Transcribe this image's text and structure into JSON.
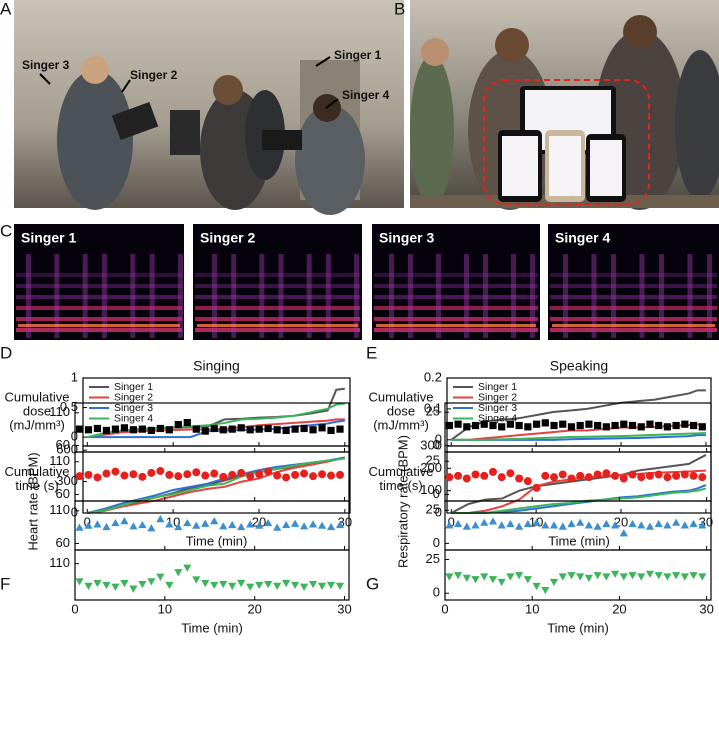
{
  "panel_labels": [
    "A",
    "B",
    "C",
    "D",
    "E",
    "F",
    "G"
  ],
  "photo_a": {
    "annotations": [
      "Singer 3",
      "Singer 2",
      "Singer 1",
      "Singer 4"
    ]
  },
  "spectrograms": {
    "labels": [
      "Singer 1",
      "Singer 2",
      "Singer 3",
      "Singer 4"
    ]
  },
  "chart_data": [
    {
      "type": "line",
      "title": "Singing",
      "xlabel": "Time (min)",
      "xlim": [
        -0.5,
        30.6
      ],
      "xticks": [
        0,
        10,
        20,
        30
      ],
      "x": [
        0,
        2,
        4,
        6,
        8,
        10,
        12,
        14,
        16,
        18,
        20,
        22,
        24,
        26,
        28,
        29,
        30
      ],
      "series": [
        {
          "name": "Singer 1",
          "color": "#555555"
        },
        {
          "name": "Singer 2",
          "color": "#e8403f"
        },
        {
          "name": "Singer 3",
          "color": "#2f6fd6"
        },
        {
          "name": "Singer 4",
          "color": "#3cb55a"
        }
      ],
      "subplots": [
        {
          "ylabel": [
            "Cumulative",
            "dose",
            "(mJ/mm³)"
          ],
          "ylim": [
            -0.15,
            1.0
          ],
          "yticks": [
            0,
            0.5,
            1
          ],
          "values": [
            [
              0,
              0.06,
              0.1,
              0.13,
              0.15,
              0.16,
              0.17,
              0.18,
              0.3,
              0.31,
              0.33,
              0.34,
              0.36,
              0.4,
              0.45,
              0.8,
              0.82
            ],
            [
              0,
              0.04,
              0.08,
              0.1,
              0.11,
              0.12,
              0.13,
              0.13,
              0.14,
              0.17,
              0.2,
              0.22,
              0.24,
              0.26,
              0.28,
              0.3,
              0.3
            ],
            [
              0,
              0,
              0,
              0,
              0,
              0,
              0,
              0.1,
              0.11,
              0.12,
              0.13,
              0.14,
              0.18,
              0.2,
              0.23,
              0.26,
              0.28
            ],
            [
              0,
              0.07,
              0.11,
              0.14,
              0.15,
              0.17,
              0.18,
              0.2,
              0.24,
              0.3,
              0.31,
              0.33,
              0.36,
              0.42,
              0.48,
              0.55,
              0.57
            ]
          ]
        },
        {
          "ylabel": [
            "Cumulative",
            "time (s)"
          ],
          "ylim": [
            0,
            640
          ],
          "yticks": [
            0,
            300,
            600
          ],
          "values": [
            [
              0,
              30,
              70,
              110,
              150,
              190,
              240,
              270,
              310,
              360,
              390,
              420,
              440,
              470,
              500,
              515,
              530
            ],
            [
              0,
              20,
              60,
              90,
              120,
              160,
              200,
              230,
              250,
              300,
              330,
              390,
              430,
              460,
              490,
              510,
              525
            ],
            [
              0,
              40,
              90,
              130,
              170,
              220,
              250,
              280,
              330,
              370,
              410,
              440,
              460,
              480,
              500,
              515,
              525
            ],
            [
              0,
              25,
              70,
              120,
              150,
              180,
              220,
              260,
              280,
              350,
              390,
              420,
              450,
              480,
              500,
              510,
              520
            ]
          ]
        }
      ]
    },
    {
      "type": "line",
      "title": "Speaking",
      "xlabel": "Time (min)",
      "xlim": [
        -0.5,
        30.6
      ],
      "xticks": [
        0,
        10,
        20,
        30
      ],
      "x": [
        0,
        2,
        4,
        6,
        8,
        10,
        12,
        14,
        16,
        18,
        20,
        22,
        24,
        26,
        28,
        29,
        30
      ],
      "series": [
        {
          "name": "Singer 1",
          "color": "#555555"
        },
        {
          "name": "Singer 2",
          "color": "#e8403f"
        },
        {
          "name": "Singer 3",
          "color": "#2f6fd6"
        },
        {
          "name": "Singer 4",
          "color": "#3cb55a"
        }
      ],
      "subplots": [
        {
          "ylabel": [
            "Cumulative",
            "dose",
            "(mJ/mm³)"
          ],
          "ylim": [
            -0.02,
            0.2
          ],
          "yticks": [
            0,
            0.1,
            0.2
          ],
          "values": [
            [
              0,
              0.04,
              0.06,
              0.065,
              0.07,
              0.08,
              0.09,
              0.095,
              0.1,
              0.11,
              0.12,
              0.125,
              0.13,
              0.14,
              0.15,
              0.16,
              0.16
            ],
            [
              0,
              0,
              0.005,
              0.01,
              0.015,
              0.02,
              0.025,
              0.03,
              0.03,
              0.035,
              0.04,
              0.04,
              0.042,
              0.045,
              0.048,
              0.05,
              0.05
            ],
            [
              0,
              0,
              0,
              0,
              0,
              0,
              0,
              0.002,
              0.003,
              0.004,
              0.005,
              0.006,
              0.008,
              0.01,
              0.012,
              0.015,
              0.015
            ],
            [
              0,
              0,
              0,
              0.002,
              0.003,
              0.005,
              0.007,
              0.009,
              0.01,
              0.011,
              0.012,
              0.014,
              0.016,
              0.018,
              0.02,
              0.021,
              0.022
            ]
          ]
        },
        {
          "ylabel": [
            "Cumulative",
            "time (s)"
          ],
          "ylim": [
            0,
            300
          ],
          "yticks": [
            0,
            100,
            200,
            300
          ],
          "values": [
            [
              0,
              40,
              60,
              65,
              100,
              120,
              130,
              140,
              150,
              160,
              170,
              190,
              200,
              210,
              220,
              240,
              260
            ],
            [
              0,
              0,
              10,
              30,
              60,
              120,
              140,
              150,
              160,
              165,
              170,
              175,
              180,
              183,
              186,
              188,
              190
            ],
            [
              0,
              0,
              0,
              5,
              10,
              20,
              30,
              40,
              50,
              60,
              70,
              75,
              85,
              95,
              100,
              110,
              125
            ],
            [
              0,
              0,
              0,
              10,
              20,
              30,
              40,
              45,
              55,
              60,
              65,
              70,
              80,
              90,
              95,
              100,
              110
            ]
          ]
        }
      ]
    },
    {
      "type": "scatter",
      "xlabel": "Time (min)",
      "ylabel": "Heart rate (BPM)",
      "xlim": [
        0,
        30.5
      ],
      "xticks": [
        0,
        10,
        20,
        30
      ],
      "x": [
        0.5,
        1.5,
        2.5,
        3.5,
        4.5,
        5.5,
        6.5,
        7.5,
        8.5,
        9.5,
        10.5,
        11.5,
        12.5,
        13.5,
        14.5,
        15.5,
        16.5,
        17.5,
        18.5,
        19.5,
        20.5,
        21.5,
        22.5,
        23.5,
        24.5,
        25.5,
        26.5,
        27.5,
        28.5,
        29.5
      ],
      "series": [
        {
          "color": "#000000",
          "marker": "square"
        },
        {
          "color": "#e8201c",
          "marker": "circle"
        },
        {
          "color": "#3b8fd0",
          "marker": "triangle-up"
        },
        {
          "color": "#3cb55a",
          "marker": "triangle-down"
        }
      ],
      "subplots": [
        {
          "ylim": [
            50,
            125
          ],
          "yticks": [
            60,
            110
          ],
          "values": [
            85,
            84,
            86,
            83,
            85,
            87,
            84,
            85,
            83,
            86,
            84,
            92,
            95,
            85,
            82,
            86,
            84,
            85,
            87,
            84,
            85,
            86,
            84,
            83,
            85,
            86,
            84,
            87,
            83,
            85
          ]
        },
        {
          "ylim": [
            50,
            125
          ],
          "yticks": [
            60,
            110
          ],
          "values": [
            88,
            90,
            86,
            92,
            95,
            89,
            91,
            87,
            93,
            96,
            90,
            88,
            91,
            94,
            89,
            92,
            87,
            90,
            93,
            88,
            91,
            95,
            89,
            86,
            90,
            92,
            88,
            91,
            89,
            90
          ]
        },
        {
          "ylim": [
            50,
            125
          ],
          "yticks": [
            60,
            110
          ],
          "values": [
            85,
            88,
            90,
            86,
            92,
            95,
            87,
            89,
            84,
            98,
            90,
            86,
            92,
            88,
            91,
            95,
            87,
            89,
            86,
            90,
            88,
            92,
            85,
            89,
            91,
            87,
            90,
            88,
            86,
            89
          ]
        },
        {
          "ylim": [
            70,
            125
          ],
          "yticks": [
            110
          ],
          "values": [
            90,
            85,
            88,
            86,
            84,
            88,
            82,
            87,
            90,
            95,
            86,
            100,
            105,
            92,
            88,
            86,
            87,
            85,
            88,
            84,
            86,
            87,
            85,
            88,
            86,
            84,
            87,
            85,
            86,
            85
          ]
        }
      ]
    },
    {
      "type": "scatter",
      "xlabel": "Time (min)",
      "ylabel": "Respiratory rate (BPM)",
      "xlim": [
        0,
        30.5
      ],
      "xticks": [
        0,
        10,
        20,
        30
      ],
      "x": [
        0.5,
        1.5,
        2.5,
        3.5,
        4.5,
        5.5,
        6.5,
        7.5,
        8.5,
        9.5,
        10.5,
        11.5,
        12.5,
        13.5,
        14.5,
        15.5,
        16.5,
        17.5,
        18.5,
        19.5,
        20.5,
        21.5,
        22.5,
        23.5,
        24.5,
        25.5,
        26.5,
        27.5,
        28.5,
        29.5
      ],
      "series": [
        {
          "color": "#000000",
          "marker": "square"
        },
        {
          "color": "#e8201c",
          "marker": "circle"
        },
        {
          "color": "#3b8fd0",
          "marker": "triangle-up"
        },
        {
          "color": "#3cb55a",
          "marker": "triangle-down"
        }
      ],
      "subplots": [
        {
          "ylim": [
            -5,
            32
          ],
          "yticks": [
            0,
            25
          ],
          "values": [
            15,
            16,
            14,
            15,
            16,
            15,
            14,
            16,
            15,
            14,
            16,
            17,
            15,
            16,
            14,
            15,
            16,
            15,
            14,
            15,
            16,
            15,
            14,
            16,
            15,
            14,
            15,
            16,
            15,
            14
          ]
        },
        {
          "ylim": [
            -5,
            32
          ],
          "yticks": [
            0,
            25
          ],
          "values": [
            13,
            14,
            12,
            15,
            14,
            17,
            13,
            16,
            12,
            10,
            5,
            14,
            13,
            15,
            12,
            14,
            13,
            15,
            16,
            14,
            12,
            15,
            13,
            14,
            15,
            13,
            14,
            15,
            14,
            13
          ]
        },
        {
          "ylim": [
            -5,
            32
          ],
          "yticks": [
            0,
            25
          ],
          "values": [
            14,
            15,
            13,
            14,
            16,
            17,
            14,
            15,
            13,
            15,
            16,
            14,
            14,
            13,
            15,
            16,
            14,
            13,
            15,
            14,
            8,
            15,
            14,
            13,
            15,
            14,
            16,
            14,
            15,
            14
          ]
        },
        {
          "ylim": [
            -5,
            32
          ],
          "yticks": [
            0,
            25
          ],
          "values": [
            12,
            13,
            11,
            10,
            12,
            10,
            8,
            12,
            13,
            10,
            5,
            2,
            8,
            12,
            13,
            12,
            11,
            13,
            12,
            14,
            12,
            13,
            12,
            14,
            13,
            12,
            13,
            12,
            13,
            12
          ]
        }
      ]
    }
  ]
}
